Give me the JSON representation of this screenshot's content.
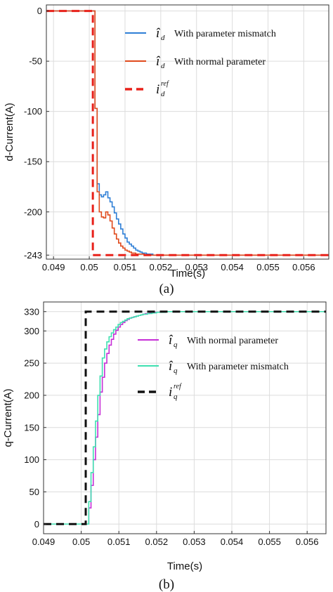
{
  "chart_data": [
    {
      "type": "line",
      "caption": "(a)",
      "xlabel": "Time(s)",
      "ylabel": "d-Current(A)",
      "xlim": [
        0.0488,
        0.0567
      ],
      "ylim": [
        -247,
        6
      ],
      "xticks": [
        0.049,
        0.05,
        0.051,
        0.052,
        0.053,
        0.054,
        0.055,
        0.056
      ],
      "xtick_labels": [
        "0.049",
        "0.05",
        "0.051",
        "0.052",
        "0.053",
        "0.054",
        "0.055",
        "0.056"
      ],
      "yticks": [
        0,
        -50,
        -100,
        -150,
        -200,
        -243
      ],
      "ytick_labels": [
        "0",
        "-50",
        "-100",
        "-150",
        "-200",
        "-243"
      ],
      "grid": true,
      "legend": "top-right",
      "series": [
        {
          "symbol": "î",
          "sub": "d",
          "sup": "",
          "label": "With parameter mismatch",
          "color": "#2f7fd6",
          "dash": "solid",
          "x": [
            0.0488,
            0.05016,
            0.05016,
            0.05022,
            0.05022,
            0.05028,
            0.05028,
            0.05034,
            0.05034,
            0.0504,
            0.0504,
            0.05046,
            0.05046,
            0.05052,
            0.05052,
            0.05058,
            0.05058,
            0.05064,
            0.05064,
            0.0507,
            0.0507,
            0.05076,
            0.05076,
            0.05082,
            0.05082,
            0.05088,
            0.05088,
            0.05094,
            0.05094,
            0.051,
            0.051,
            0.05106,
            0.05106,
            0.05112,
            0.05112,
            0.05118,
            0.05118,
            0.05124,
            0.05124,
            0.0513,
            0.0513,
            0.05136,
            0.05136,
            0.05142,
            0.05142,
            0.05148,
            0.05148,
            0.05154,
            0.05154,
            0.0516,
            0.0516,
            0.05166,
            0.05166,
            0.05172,
            0.05172,
            0.05178,
            0.05178,
            0.05184,
            0.05184,
            0.0519,
            0.0519,
            0.05196,
            0.05196,
            0.05202,
            0.05202,
            0.05208,
            0.05208,
            0.05214,
            0.05214,
            0.0522,
            0.0522,
            0.05226,
            0.05226,
            0.05232,
            0.05232,
            0.0567
          ],
          "y": [
            0,
            0,
            -97,
            -97,
            -172,
            -172,
            -183,
            -183,
            -185,
            -185,
            -183,
            -183,
            -180,
            -180,
            -186,
            -186,
            -190,
            -190,
            -195,
            -195,
            -201,
            -201,
            -207,
            -207,
            -212,
            -212,
            -217,
            -217,
            -222,
            -222,
            -226,
            -226,
            -230,
            -230,
            -232,
            -232,
            -234,
            -234,
            -236,
            -236,
            -238,
            -238,
            -239,
            -239,
            -240,
            -240,
            -241,
            -241,
            -241,
            -241,
            -242,
            -242,
            -242,
            -242,
            -242,
            -242,
            -243,
            -243,
            -243,
            -243,
            -243,
            -243,
            -243,
            -243,
            -243,
            -243,
            -243,
            -243,
            -243,
            -243,
            -243,
            -243,
            -243,
            -243,
            -243,
            -243
          ]
        },
        {
          "symbol": "î",
          "sub": "d",
          "sup": "",
          "label": "With normal parameter",
          "color": "#e04a1c",
          "dash": "solid",
          "x": [
            0.0488,
            0.05016,
            0.05016,
            0.05022,
            0.05022,
            0.05028,
            0.05028,
            0.05034,
            0.05034,
            0.0504,
            0.0504,
            0.05046,
            0.05046,
            0.05052,
            0.05052,
            0.05058,
            0.05058,
            0.05064,
            0.05064,
            0.0507,
            0.0507,
            0.05076,
            0.05076,
            0.05082,
            0.05082,
            0.05088,
            0.05088,
            0.05094,
            0.05094,
            0.051,
            0.051,
            0.05106,
            0.05106,
            0.05112,
            0.05112,
            0.05118,
            0.05118,
            0.05124,
            0.05124,
            0.0513,
            0.0513,
            0.05136,
            0.05136,
            0.05142,
            0.05142,
            0.05148,
            0.05148,
            0.05154,
            0.05154,
            0.0516,
            0.0516,
            0.05166,
            0.05166,
            0.05172,
            0.05172,
            0.05178,
            0.05178,
            0.05184,
            0.05184,
            0.0519,
            0.0519,
            0.0567
          ],
          "y": [
            0,
            0,
            -97,
            -97,
            -180,
            -180,
            -200,
            -200,
            -205,
            -205,
            -206,
            -206,
            -200,
            -200,
            -203,
            -203,
            -209,
            -209,
            -216,
            -216,
            -222,
            -222,
            -227,
            -227,
            -231,
            -231,
            -234,
            -234,
            -236,
            -236,
            -238,
            -238,
            -239,
            -239,
            -240,
            -240,
            -241,
            -241,
            -241,
            -241,
            -242,
            -242,
            -242,
            -242,
            -242,
            -242,
            -242,
            -242,
            -243,
            -243,
            -243,
            -243,
            -243,
            -243,
            -243,
            -243,
            -243,
            -243,
            -243,
            -243,
            -243,
            -243
          ]
        },
        {
          "symbol": "i",
          "sub": "d",
          "sup": "ref",
          "label": "",
          "color": "#e8211a",
          "dash": "dashed",
          "x": [
            0.0488,
            0.0501,
            0.0501,
            0.0567
          ],
          "y": [
            0,
            0,
            -243,
            -243
          ]
        }
      ]
    },
    {
      "type": "line",
      "caption": "(b)",
      "xlabel": "Time(s)",
      "ylabel": "q-Current(A)",
      "xlim": [
        0.049,
        0.0565
      ],
      "ylim": [
        -15,
        345
      ],
      "xticks": [
        0.049,
        0.05,
        0.051,
        0.052,
        0.053,
        0.054,
        0.055,
        0.056
      ],
      "xtick_labels": [
        "0.049",
        "0.05",
        "0.051",
        "0.052",
        "0.053",
        "0.054",
        "0.055",
        "0.056"
      ],
      "yticks": [
        0,
        50,
        100,
        150,
        200,
        250,
        300,
        330
      ],
      "ytick_labels": [
        "0",
        "50",
        "100",
        "150",
        "200",
        "250",
        "300",
        "330"
      ],
      "grid": true,
      "legend": "top-right",
      "series": [
        {
          "symbol": "î",
          "sub": "q",
          "sup": "",
          "label": "With normal parameter",
          "color": "#c62ed6",
          "dash": "solid",
          "x": [
            0.049,
            0.0502,
            0.0502,
            0.05026,
            0.05026,
            0.05032,
            0.05032,
            0.05038,
            0.05038,
            0.05044,
            0.05044,
            0.0505,
            0.0505,
            0.05056,
            0.05056,
            0.05062,
            0.05062,
            0.05068,
            0.05068,
            0.05074,
            0.05074,
            0.0508,
            0.0508,
            0.05086,
            0.05086,
            0.05092,
            0.05092,
            0.05098,
            0.05098,
            0.05104,
            0.05104,
            0.0511,
            0.0511,
            0.05116,
            0.05116,
            0.05122,
            0.05122,
            0.05128,
            0.05128,
            0.05134,
            0.05134,
            0.0514,
            0.0514,
            0.05146,
            0.05146,
            0.05152,
            0.05152,
            0.05158,
            0.05158,
            0.05164,
            0.05164,
            0.0517,
            0.0517,
            0.05176,
            0.05176,
            0.05182,
            0.05182,
            0.05188,
            0.05188,
            0.05194,
            0.05194,
            0.052,
            0.052,
            0.05206,
            0.05206,
            0.05212,
            0.05212,
            0.05218,
            0.05218,
            0.05224,
            0.05224,
            0.0523,
            0.0523,
            0.05236,
            0.05236,
            0.05242,
            0.05242,
            0.0565
          ],
          "y": [
            0,
            0,
            25,
            25,
            60,
            60,
            100,
            100,
            135,
            135,
            170,
            170,
            205,
            205,
            228,
            228,
            250,
            250,
            265,
            265,
            278,
            278,
            287,
            287,
            295,
            295,
            301,
            301,
            306,
            306,
            310,
            310,
            313,
            313,
            316,
            316,
            318,
            318,
            320,
            320,
            321,
            321,
            322,
            322,
            323,
            323,
            324,
            324,
            325,
            325,
            326,
            326,
            327,
            327,
            327,
            327,
            328,
            328,
            328,
            328,
            329,
            329,
            329,
            329,
            329,
            329,
            330,
            330,
            330,
            330,
            330,
            330,
            330,
            330,
            330,
            330,
            330,
            330
          ]
        },
        {
          "symbol": "î",
          "sub": "q",
          "sup": "",
          "label": "With parameter mismatch",
          "color": "#3fe0b0",
          "dash": "solid",
          "x": [
            0.049,
            0.0502,
            0.0502,
            0.05026,
            0.05026,
            0.05032,
            0.05032,
            0.05038,
            0.05038,
            0.05044,
            0.05044,
            0.0505,
            0.0505,
            0.05056,
            0.05056,
            0.05062,
            0.05062,
            0.05068,
            0.05068,
            0.05074,
            0.05074,
            0.0508,
            0.0508,
            0.05086,
            0.05086,
            0.05092,
            0.05092,
            0.05098,
            0.05098,
            0.05104,
            0.05104,
            0.0511,
            0.0511,
            0.05116,
            0.05116,
            0.05122,
            0.05122,
            0.05128,
            0.05128,
            0.05134,
            0.05134,
            0.0514,
            0.0514,
            0.05146,
            0.05146,
            0.05152,
            0.05152,
            0.05158,
            0.05158,
            0.05164,
            0.05164,
            0.0517,
            0.0517,
            0.05176,
            0.05176,
            0.05182,
            0.05182,
            0.05188,
            0.05188,
            0.05194,
            0.05194,
            0.052,
            0.052,
            0.05206,
            0.05206,
            0.05212,
            0.05212,
            0.05218,
            0.05218,
            0.05224,
            0.05224,
            0.0523,
            0.0523,
            0.05236,
            0.05236,
            0.05242,
            0.05242,
            0.0525,
            0.0525,
            0.0565
          ],
          "y": [
            0,
            0,
            35,
            35,
            80,
            80,
            120,
            120,
            160,
            160,
            200,
            200,
            230,
            230,
            258,
            258,
            272,
            272,
            283,
            283,
            291,
            291,
            297,
            297,
            302,
            302,
            306,
            306,
            310,
            310,
            313,
            313,
            315,
            315,
            317,
            317,
            319,
            319,
            320,
            320,
            321,
            321,
            322,
            322,
            323,
            323,
            324,
            324,
            325,
            325,
            326,
            326,
            326,
            326,
            327,
            327,
            327,
            327,
            328,
            328,
            328,
            328,
            329,
            329,
            329,
            329,
            329,
            329,
            329,
            329,
            330,
            330,
            330,
            330,
            330,
            330,
            330,
            330,
            330,
            330
          ]
        },
        {
          "symbol": "i",
          "sub": "q",
          "sup": "ref",
          "label": "",
          "color": "#111111",
          "dash": "dashed",
          "x": [
            0.049,
            0.05012,
            0.05012,
            0.0565
          ],
          "y": [
            0,
            0,
            330,
            330
          ]
        }
      ]
    }
  ]
}
